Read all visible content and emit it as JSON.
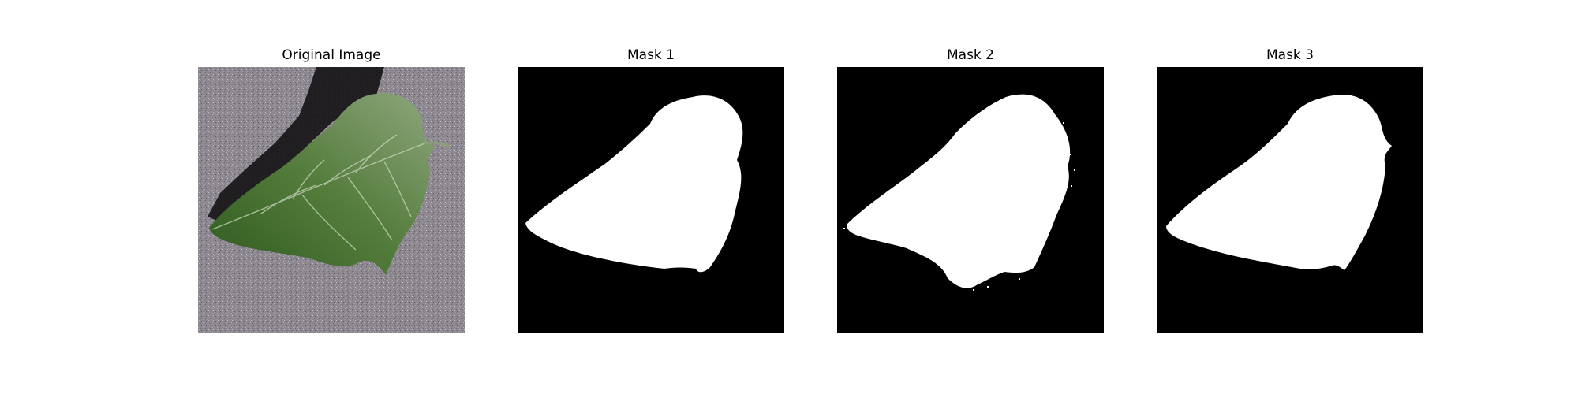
{
  "panels": [
    {
      "title": "Original Image"
    },
    {
      "title": "Mask 1"
    },
    {
      "title": "Mask 2"
    },
    {
      "title": "Mask 3"
    }
  ],
  "colors": {
    "background": "#ffffff",
    "mask_background": "#000000",
    "mask_foreground": "#ffffff",
    "surface_gray": "#8f8a91",
    "leaf_green": "#3f6a2e"
  }
}
